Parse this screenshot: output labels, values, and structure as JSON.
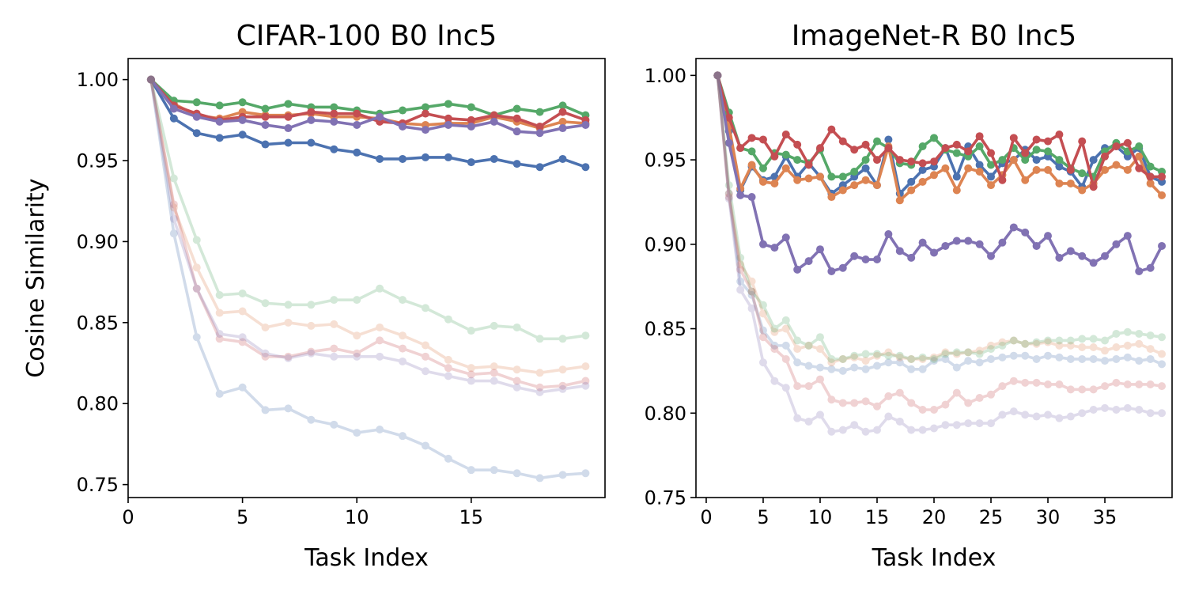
{
  "colors": {
    "blue": "#4c72b0",
    "orange": "#dd8452",
    "green": "#55a868",
    "red": "#c44e52",
    "purple": "#8172b3"
  },
  "chart_data": [
    {
      "type": "line",
      "title": "CIFAR-100 B0 Inc5",
      "xlabel": "Task Index",
      "ylabel": "Cosine Similarity",
      "xlim": [
        0,
        20.85
      ],
      "ylim": [
        0.742,
        1.013
      ],
      "xticks": [
        0,
        5,
        10,
        15
      ],
      "xtick_labels": [
        "0",
        "5",
        "10",
        "15"
      ],
      "yticks": [
        0.75,
        0.8,
        0.85,
        0.9,
        0.95,
        1.0
      ],
      "ytick_labels": [
        "0.75",
        "0.80",
        "0.85",
        "0.90",
        "0.95",
        "1.00"
      ],
      "x": [
        1,
        2,
        3,
        4,
        5,
        6,
        7,
        8,
        9,
        10,
        11,
        12,
        13,
        14,
        15,
        16,
        17,
        18,
        19,
        20
      ],
      "series": [
        {
          "name": "blue",
          "color": "blue",
          "alpha": 1,
          "values": [
            1.0,
            0.976,
            0.967,
            0.964,
            0.966,
            0.96,
            0.961,
            0.961,
            0.957,
            0.955,
            0.951,
            0.951,
            0.952,
            0.952,
            0.949,
            0.951,
            0.948,
            0.946,
            0.951,
            0.946
          ]
        },
        {
          "name": "orange",
          "color": "orange",
          "alpha": 1,
          "values": [
            1.0,
            0.985,
            0.978,
            0.976,
            0.98,
            0.978,
            0.978,
            0.979,
            0.977,
            0.977,
            0.976,
            0.973,
            0.972,
            0.973,
            0.973,
            0.977,
            0.974,
            0.97,
            0.974,
            0.973
          ]
        },
        {
          "name": "green",
          "color": "green",
          "alpha": 1,
          "values": [
            1.0,
            0.987,
            0.986,
            0.984,
            0.986,
            0.982,
            0.985,
            0.983,
            0.983,
            0.981,
            0.979,
            0.981,
            0.983,
            0.985,
            0.983,
            0.978,
            0.982,
            0.98,
            0.984,
            0.978
          ]
        },
        {
          "name": "red",
          "color": "red",
          "alpha": 1,
          "values": [
            1.0,
            0.984,
            0.979,
            0.975,
            0.977,
            0.977,
            0.977,
            0.98,
            0.979,
            0.979,
            0.974,
            0.973,
            0.979,
            0.976,
            0.975,
            0.978,
            0.976,
            0.971,
            0.98,
            0.975
          ]
        },
        {
          "name": "purple",
          "color": "purple",
          "alpha": 1,
          "values": [
            1.0,
            0.982,
            0.977,
            0.974,
            0.975,
            0.972,
            0.97,
            0.975,
            0.974,
            0.972,
            0.977,
            0.971,
            0.969,
            0.972,
            0.971,
            0.974,
            0.968,
            0.967,
            0.97,
            0.972
          ]
        },
        {
          "name": "blue (faded)",
          "color": "blue",
          "alpha": 0.25,
          "values": [
            1.0,
            0.905,
            0.841,
            0.806,
            0.81,
            0.796,
            0.797,
            0.79,
            0.787,
            0.782,
            0.784,
            0.78,
            0.774,
            0.766,
            0.759,
            0.759,
            0.757,
            0.754,
            0.756,
            0.757
          ]
        },
        {
          "name": "orange (faded)",
          "color": "orange",
          "alpha": 0.25,
          "values": [
            1.0,
            0.921,
            0.884,
            0.856,
            0.857,
            0.847,
            0.85,
            0.848,
            0.849,
            0.842,
            0.847,
            0.842,
            0.836,
            0.827,
            0.822,
            0.823,
            0.821,
            0.819,
            0.821,
            0.823
          ]
        },
        {
          "name": "green (faded)",
          "color": "green",
          "alpha": 0.25,
          "values": [
            1.0,
            0.939,
            0.901,
            0.867,
            0.868,
            0.862,
            0.861,
            0.861,
            0.864,
            0.864,
            0.871,
            0.864,
            0.859,
            0.852,
            0.845,
            0.848,
            0.847,
            0.84,
            0.84,
            0.842
          ]
        },
        {
          "name": "red (faded)",
          "color": "red",
          "alpha": 0.25,
          "values": [
            1.0,
            0.923,
            0.871,
            0.84,
            0.838,
            0.829,
            0.829,
            0.832,
            0.834,
            0.831,
            0.839,
            0.834,
            0.829,
            0.822,
            0.818,
            0.819,
            0.814,
            0.81,
            0.811,
            0.814
          ]
        },
        {
          "name": "purple (faded)",
          "color": "purple",
          "alpha": 0.25,
          "values": [
            1.0,
            0.914,
            0.871,
            0.843,
            0.841,
            0.831,
            0.828,
            0.831,
            0.829,
            0.829,
            0.829,
            0.826,
            0.82,
            0.817,
            0.814,
            0.814,
            0.81,
            0.807,
            0.809,
            0.811
          ]
        }
      ]
    },
    {
      "type": "line",
      "title": "ImageNet-R B0 Inc5",
      "xlabel": "Task Index",
      "ylabel": "",
      "xlim": [
        -0.9,
        40.9
      ],
      "ylim": [
        0.75,
        1.01
      ],
      "xticks": [
        0,
        5,
        10,
        15,
        20,
        25,
        30,
        35
      ],
      "xtick_labels": [
        "0",
        "5",
        "10",
        "15",
        "20",
        "25",
        "30",
        "35"
      ],
      "yticks": [
        0.75,
        0.8,
        0.85,
        0.9,
        0.95,
        1.0
      ],
      "ytick_labels": [
        "0.75",
        "0.80",
        "0.85",
        "0.90",
        "0.95",
        "1.00"
      ],
      "x": [
        1,
        2,
        3,
        4,
        5,
        6,
        7,
        8,
        9,
        10,
        11,
        12,
        13,
        14,
        15,
        16,
        17,
        18,
        19,
        20,
        21,
        22,
        23,
        24,
        25,
        26,
        27,
        28,
        29,
        30,
        31,
        32,
        33,
        34,
        35,
        36,
        37,
        38,
        39,
        40
      ],
      "series": [
        {
          "name": "blue",
          "color": "blue",
          "alpha": 1,
          "values": [
            1.0,
            0.967,
            0.932,
            0.946,
            0.938,
            0.94,
            0.952,
            0.94,
            0.948,
            0.94,
            0.93,
            0.935,
            0.94,
            0.945,
            0.935,
            0.962,
            0.93,
            0.937,
            0.944,
            0.946,
            0.957,
            0.94,
            0.958,
            0.947,
            0.94,
            0.948,
            0.95,
            0.956,
            0.95,
            0.952,
            0.946,
            0.943,
            0.934,
            0.95,
            0.957,
            0.958,
            0.952,
            0.957,
            0.94,
            0.937
          ]
        },
        {
          "name": "orange",
          "color": "orange",
          "alpha": 1,
          "values": [
            1.0,
            0.97,
            0.933,
            0.947,
            0.937,
            0.936,
            0.945,
            0.938,
            0.939,
            0.94,
            0.928,
            0.932,
            0.935,
            0.938,
            0.935,
            0.958,
            0.926,
            0.932,
            0.937,
            0.941,
            0.945,
            0.932,
            0.945,
            0.943,
            0.935,
            0.941,
            0.95,
            0.938,
            0.944,
            0.944,
            0.936,
            0.936,
            0.932,
            0.936,
            0.944,
            0.947,
            0.944,
            0.952,
            0.936,
            0.929
          ]
        },
        {
          "name": "green",
          "color": "green",
          "alpha": 1,
          "values": [
            1.0,
            0.978,
            0.957,
            0.955,
            0.945,
            0.954,
            0.953,
            0.95,
            0.948,
            0.956,
            0.94,
            0.94,
            0.943,
            0.95,
            0.961,
            0.957,
            0.948,
            0.947,
            0.958,
            0.963,
            0.956,
            0.954,
            0.952,
            0.958,
            0.947,
            0.95,
            0.957,
            0.95,
            0.956,
            0.955,
            0.95,
            0.945,
            0.942,
            0.94,
            0.955,
            0.96,
            0.955,
            0.958,
            0.946,
            0.943
          ]
        },
        {
          "name": "red",
          "color": "red",
          "alpha": 1,
          "values": [
            1.0,
            0.975,
            0.957,
            0.963,
            0.962,
            0.952,
            0.965,
            0.959,
            0.947,
            0.957,
            0.968,
            0.961,
            0.956,
            0.959,
            0.95,
            0.957,
            0.95,
            0.949,
            0.948,
            0.949,
            0.957,
            0.959,
            0.955,
            0.964,
            0.954,
            0.938,
            0.963,
            0.954,
            0.962,
            0.961,
            0.965,
            0.944,
            0.961,
            0.934,
            0.952,
            0.958,
            0.96,
            0.945,
            0.94,
            0.94
          ]
        },
        {
          "name": "purple",
          "color": "purple",
          "alpha": 1,
          "values": [
            1.0,
            0.96,
            0.929,
            0.928,
            0.9,
            0.898,
            0.904,
            0.885,
            0.89,
            0.897,
            0.884,
            0.886,
            0.893,
            0.891,
            0.891,
            0.906,
            0.896,
            0.892,
            0.901,
            0.895,
            0.899,
            0.902,
            0.902,
            0.9,
            0.893,
            0.901,
            0.91,
            0.907,
            0.899,
            0.905,
            0.892,
            0.896,
            0.893,
            0.889,
            0.893,
            0.9,
            0.905,
            0.884,
            0.886,
            0.899
          ]
        },
        {
          "name": "blue (faded)",
          "color": "blue",
          "alpha": 0.25,
          "values": [
            1.0,
            0.93,
            0.878,
            0.87,
            0.849,
            0.84,
            0.84,
            0.83,
            0.828,
            0.827,
            0.826,
            0.825,
            0.827,
            0.826,
            0.828,
            0.83,
            0.83,
            0.826,
            0.826,
            0.831,
            0.832,
            0.827,
            0.831,
            0.83,
            0.832,
            0.833,
            0.834,
            0.834,
            0.832,
            0.834,
            0.833,
            0.832,
            0.832,
            0.832,
            0.831,
            0.832,
            0.833,
            0.831,
            0.832,
            0.829
          ]
        },
        {
          "name": "orange (faded)",
          "color": "orange",
          "alpha": 0.25,
          "values": [
            1.0,
            0.93,
            0.888,
            0.878,
            0.859,
            0.848,
            0.85,
            0.838,
            0.84,
            0.838,
            0.83,
            0.832,
            0.833,
            0.831,
            0.834,
            0.836,
            0.833,
            0.832,
            0.832,
            0.833,
            0.836,
            0.835,
            0.836,
            0.837,
            0.84,
            0.842,
            0.843,
            0.841,
            0.841,
            0.842,
            0.84,
            0.84,
            0.839,
            0.839,
            0.837,
            0.839,
            0.84,
            0.841,
            0.838,
            0.835
          ]
        },
        {
          "name": "green (faded)",
          "color": "green",
          "alpha": 0.25,
          "values": [
            1.0,
            0.935,
            0.892,
            0.872,
            0.864,
            0.85,
            0.855,
            0.843,
            0.84,
            0.845,
            0.832,
            0.832,
            0.834,
            0.835,
            0.835,
            0.834,
            0.834,
            0.832,
            0.833,
            0.832,
            0.835,
            0.836,
            0.836,
            0.835,
            0.838,
            0.84,
            0.843,
            0.841,
            0.842,
            0.843,
            0.843,
            0.843,
            0.844,
            0.844,
            0.843,
            0.847,
            0.848,
            0.847,
            0.846,
            0.845
          ]
        },
        {
          "name": "red (faded)",
          "color": "red",
          "alpha": 0.25,
          "values": [
            1.0,
            0.928,
            0.885,
            0.872,
            0.845,
            0.838,
            0.832,
            0.816,
            0.816,
            0.82,
            0.808,
            0.806,
            0.806,
            0.807,
            0.804,
            0.81,
            0.812,
            0.806,
            0.802,
            0.802,
            0.805,
            0.812,
            0.806,
            0.809,
            0.811,
            0.816,
            0.819,
            0.818,
            0.818,
            0.817,
            0.817,
            0.814,
            0.814,
            0.814,
            0.816,
            0.818,
            0.817,
            0.817,
            0.817,
            0.816
          ]
        },
        {
          "name": "purple (faded)",
          "color": "purple",
          "alpha": 0.25,
          "values": [
            1.0,
            0.927,
            0.873,
            0.862,
            0.83,
            0.819,
            0.815,
            0.797,
            0.795,
            0.799,
            0.789,
            0.79,
            0.793,
            0.789,
            0.79,
            0.798,
            0.795,
            0.79,
            0.79,
            0.791,
            0.793,
            0.793,
            0.794,
            0.794,
            0.794,
            0.799,
            0.801,
            0.799,
            0.798,
            0.799,
            0.797,
            0.798,
            0.8,
            0.802,
            0.803,
            0.802,
            0.803,
            0.802,
            0.8,
            0.8
          ]
        }
      ]
    }
  ]
}
